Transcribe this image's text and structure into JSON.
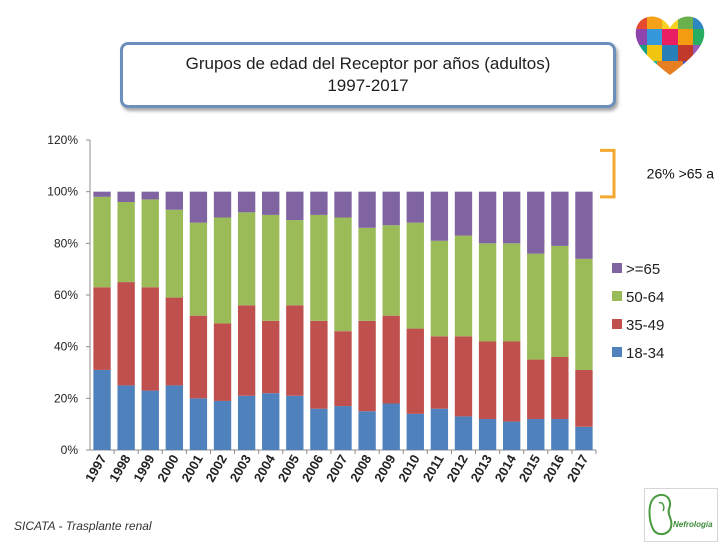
{
  "title_line1": "Grupos de edad del Receptor por años (adultos)",
  "title_line2": "1997-2017",
  "source": "SICATA - Trasplante renal",
  "logo_footer_text": "Nefrología",
  "annotation": "26% >65 a",
  "colors": {
    "18-34": "#4f81bd",
    "35-49": "#c0504d",
    "50-64": "#9bbb59",
    ">=65": "#8064a2",
    "axis": "#8c8c8c",
    "bracket": "#f4a82f"
  },
  "chart_data": {
    "type": "bar",
    "stacked": true,
    "percent": true,
    "title": "Grupos de edad del Receptor por años (adultos) 1997-2017",
    "categories": [
      "1997",
      "1998",
      "1999",
      "2000",
      "2001",
      "2002",
      "2003",
      "2004",
      "2005",
      "2006",
      "2007",
      "2008",
      "2009",
      "2010",
      "2011",
      "2012",
      "2013",
      "2014",
      "2015",
      "2016",
      "2017"
    ],
    "series": [
      {
        "name": "18-34",
        "values": [
          31,
          25,
          23,
          25,
          20,
          19,
          21,
          22,
          21,
          16,
          17,
          15,
          18,
          14,
          16,
          13,
          12,
          11,
          12,
          12,
          9
        ]
      },
      {
        "name": "35-49",
        "values": [
          32,
          40,
          40,
          34,
          32,
          30,
          35,
          28,
          35,
          34,
          29,
          35,
          34,
          33,
          28,
          31,
          30,
          31,
          23,
          24,
          22
        ]
      },
      {
        "name": "50-64",
        "values": [
          35,
          31,
          34,
          34,
          36,
          41,
          36,
          41,
          33,
          41,
          44,
          36,
          35,
          41,
          37,
          39,
          38,
          38,
          41,
          43,
          43
        ]
      },
      {
        "name": ">=65",
        "values": [
          2,
          4,
          3,
          7,
          12,
          10,
          8,
          9,
          11,
          9,
          10,
          14,
          13,
          12,
          19,
          17,
          20,
          20,
          24,
          21,
          26
        ]
      }
    ],
    "legend_order": [
      ">=65",
      "50-64",
      "35-49",
      "18-34"
    ],
    "legend_position": "right",
    "yticks": [
      "0%",
      "20%",
      "40%",
      "60%",
      "80%",
      "100%",
      "120%"
    ],
    "ylim": [
      0,
      120
    ],
    "xlabel": "",
    "ylabel": ""
  }
}
